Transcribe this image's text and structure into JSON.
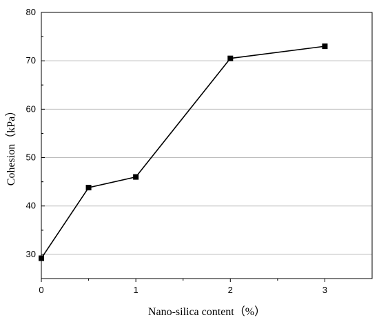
{
  "chart_data": {
    "type": "line",
    "xlabel": "Nano-silica content（%）",
    "ylabel": "Cohesion（kPa）",
    "xlim": [
      0,
      3.5
    ],
    "ylim": [
      25,
      80
    ],
    "x_ticks": [
      "0",
      "1",
      "2",
      "3"
    ],
    "y_ticks": [
      "30",
      "40",
      "50",
      "60",
      "70",
      "80"
    ],
    "grid": "horizontal",
    "series": [
      {
        "marker": "square",
        "color": "#000000",
        "x": [
          0,
          0.5,
          1,
          2,
          3
        ],
        "y": [
          29.2,
          43.8,
          46.0,
          70.5,
          73.0
        ]
      }
    ]
  }
}
